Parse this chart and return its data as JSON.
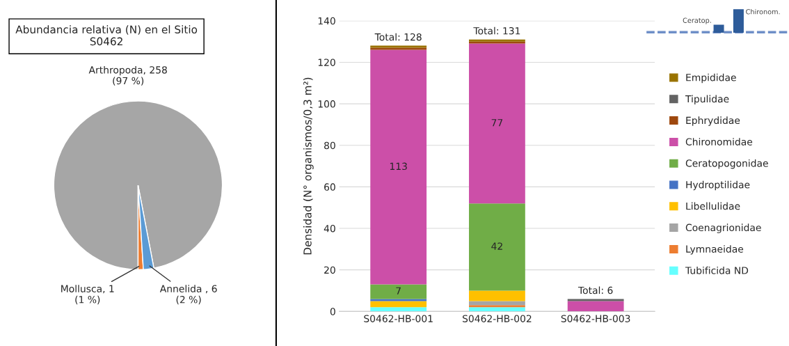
{
  "chart_data": [
    {
      "type": "pie",
      "title": "Abundancia relativa (N) en el Sitio S0462",
      "categories": [
        "Arthropoda, 258",
        "Mollusca, 1",
        "Annelida , 6"
      ],
      "values": [
        97,
        1,
        2
      ],
      "colors": [
        "#a6a6a6",
        "#ed7d31",
        "#5b9bd5"
      ],
      "data_labels": true,
      "value_labels": [
        "(97 %)",
        "(1 %)",
        "(2 %)"
      ]
    },
    {
      "type": "bar",
      "stacked": true,
      "ylabel": "Densidad (N° organismos/0,3 m²)",
      "categories": [
        "S0462-HB-001",
        "S0462-HB-002",
        "S0462-HB-003"
      ],
      "ylim": [
        0,
        140
      ],
      "yticks": [
        0,
        20,
        40,
        60,
        80,
        100,
        120,
        140
      ],
      "grid": "y",
      "legend": "right",
      "totals": [
        "Total: 128",
        "Total: 131",
        "Total: 6"
      ],
      "annotations": [
        "Ceratop.",
        "Chironom."
      ],
      "series": [
        {
          "name": "Tubificida ND",
          "color": "#66ffff",
          "values": [
            2,
            2,
            0
          ]
        },
        {
          "name": "Lymnaeidae",
          "color": "#ed7d31",
          "values": [
            0,
            1,
            0
          ]
        },
        {
          "name": "Coenagrionidae",
          "color": "#a5a5a5",
          "values": [
            0,
            2,
            0
          ]
        },
        {
          "name": "Libellulidae",
          "color": "#ffc000",
          "values": [
            3,
            5,
            0
          ]
        },
        {
          "name": "Hydroptilidae",
          "color": "#4472c4",
          "values": [
            1,
            0,
            0
          ]
        },
        {
          "name": "Ceratopogonidae",
          "color": "#70ad47",
          "values": [
            7,
            42,
            0
          ],
          "value_labels": [
            "7",
            "42",
            null
          ]
        },
        {
          "name": "Chironomidae",
          "color": "#cc4fa8",
          "values": [
            113,
            77,
            5
          ],
          "value_labels": [
            "113",
            "77",
            null
          ]
        },
        {
          "name": "Ephrydidae",
          "color": "#9e480e",
          "values": [
            1,
            1,
            0
          ]
        },
        {
          "name": "Tipulidae",
          "color": "#636363",
          "values": [
            0,
            0,
            1
          ]
        },
        {
          "name": "Empididae",
          "color": "#997300",
          "values": [
            1,
            1,
            0
          ]
        }
      ]
    }
  ]
}
